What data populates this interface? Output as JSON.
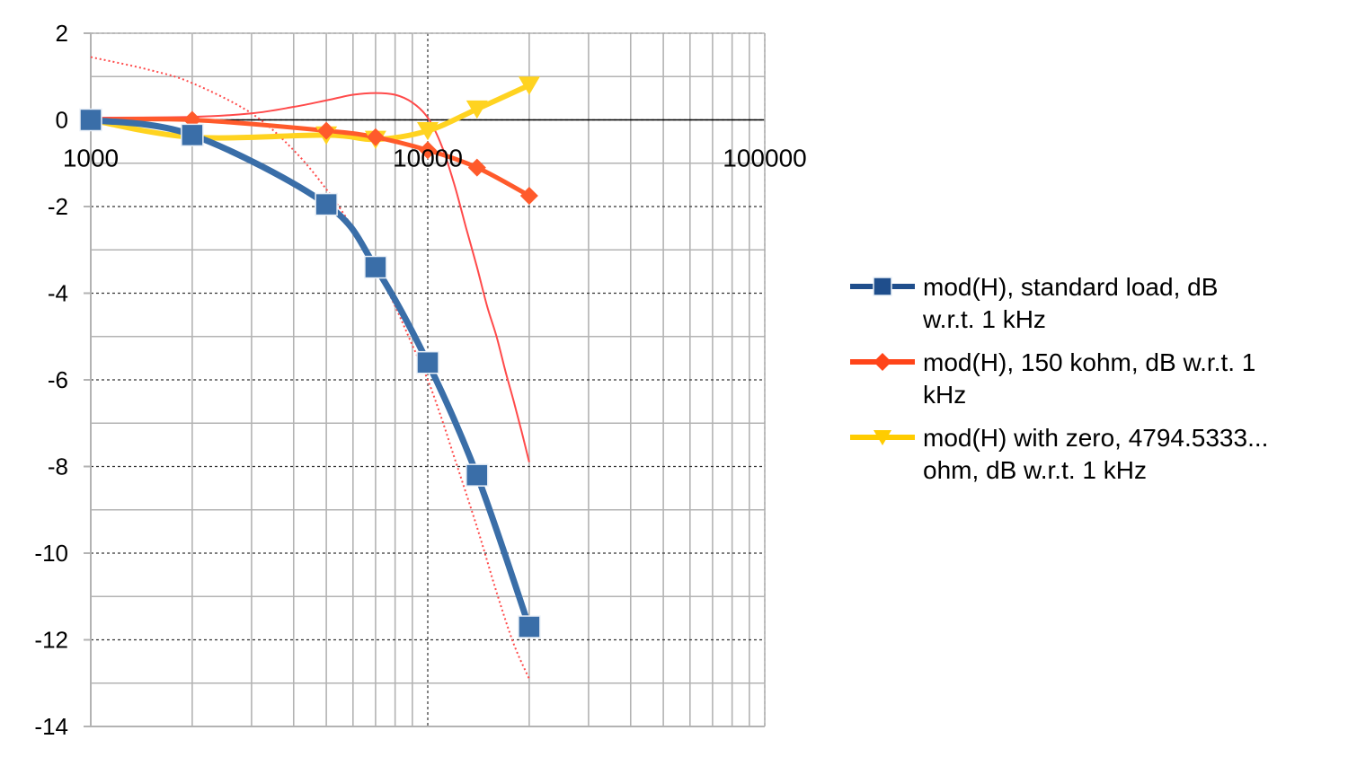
{
  "chart_data": {
    "type": "line",
    "x_scale": "log",
    "xlim": [
      1000,
      100000
    ],
    "ylim": [
      -14,
      2
    ],
    "grid": true,
    "legend_position": "right",
    "x_tick_labels": [
      "1000",
      "10000",
      "100000"
    ],
    "y_tick_labels": [
      "2",
      "0",
      "-2",
      "-4",
      "-6",
      "-8",
      "-10",
      "-12",
      "-14"
    ],
    "series": [
      {
        "name": "mod(H), standard load, dB w.r.t. 1 kHz",
        "legend_lines": [
          "mod(H), standard load, dB",
          "w.r.t. 1 kHz"
        ],
        "color": "#3a6ea8",
        "legend_color": "#1f4e8c",
        "marker": "square",
        "x": [
          1000,
          2000,
          5000,
          7000,
          10000,
          14000,
          20000
        ],
        "y": [
          0,
          -0.35,
          -1.95,
          -3.4,
          -5.6,
          -8.2,
          -11.7
        ]
      },
      {
        "name": "mod(H), 150 kohm, dB w.r.t. 1 kHz",
        "legend_lines": [
          "mod(H), 150 kohm, dB w.r.t. 1",
          "kHz"
        ],
        "color": "#ff5a2b",
        "legend_color": "#ff4419",
        "marker": "diamond",
        "x": [
          1000,
          2000,
          5000,
          7000,
          10000,
          14000,
          20000
        ],
        "y": [
          0,
          0,
          -0.25,
          -0.4,
          -0.7,
          -1.1,
          -1.75
        ]
      },
      {
        "name": "mod(H) with zero, 4794.5333... ohm, dB w.r.t. 1 kHz",
        "legend_lines": [
          "mod(H) with zero, 4794.5333...",
          "ohm, dB w.r.t. 1 kHz"
        ],
        "color": "#ffd320",
        "legend_color": "#ffcc00",
        "marker": "triangle-down",
        "x": [
          1000,
          2000,
          5000,
          7000,
          10000,
          14000,
          20000
        ],
        "y": [
          0,
          -0.4,
          -0.35,
          -0.45,
          -0.25,
          0.25,
          0.8
        ]
      }
    ],
    "reference_curves": [
      {
        "style": "solid-thin",
        "color": "#ff4a4a",
        "x": [
          1000,
          2000,
          3000,
          4000,
          5000,
          6000,
          7000,
          8000,
          9000,
          10000,
          11000,
          12000,
          13000,
          14000,
          15000,
          16000,
          17000,
          18000,
          19000,
          20000
        ],
        "y": [
          0.05,
          0.07,
          0.15,
          0.3,
          0.45,
          0.58,
          0.62,
          0.58,
          0.4,
          0.05,
          -0.6,
          -1.5,
          -2.5,
          -3.4,
          -4.3,
          -5.0,
          -5.8,
          -6.5,
          -7.2,
          -7.9
        ]
      },
      {
        "style": "dotted-thin",
        "color": "#ff4a4a",
        "x": [
          1000,
          1500,
          2000,
          3000,
          4000,
          5000,
          6000,
          7000,
          8000,
          9000,
          10000,
          11000,
          12000,
          14000,
          16000,
          18000,
          20000
        ],
        "y": [
          1.45,
          1.15,
          0.85,
          0.15,
          -0.7,
          -1.6,
          -2.5,
          -3.4,
          -4.3,
          -5.2,
          -6.0,
          -6.9,
          -7.8,
          -9.4,
          -10.9,
          -12.1,
          -12.9
        ]
      }
    ]
  }
}
